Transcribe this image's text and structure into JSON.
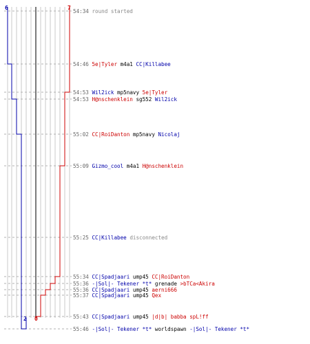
{
  "scores": {
    "blue_start": "6",
    "red_start": "7",
    "blue_end": "2",
    "red_end": "0"
  },
  "colors": {
    "blue": "#0000aa",
    "red": "#cc0000",
    "grid": "#c8c8c8",
    "dash": "#b0b0b0",
    "timestamp": "#666666"
  },
  "events": [
    {
      "time": "54:34",
      "parts": [
        {
          "t": "round started",
          "c": "gry"
        }
      ]
    },
    {
      "time": "54:46",
      "parts": [
        {
          "t": "5e|Tyler",
          "c": "red"
        },
        {
          "t": "m4a1",
          "c": "blk"
        },
        {
          "t": "CC|Killabee",
          "c": "blue"
        }
      ]
    },
    {
      "time": "54:53",
      "parts": [
        {
          "t": "Wil2ick",
          "c": "blue"
        },
        {
          "t": "mp5navy",
          "c": "blk"
        },
        {
          "t": "5e|Tyler",
          "c": "red"
        }
      ]
    },
    {
      "time": "54:53",
      "parts": [
        {
          "t": "H@nschenklein",
          "c": "red"
        },
        {
          "t": "sg552",
          "c": "blk"
        },
        {
          "t": "Wil2ick",
          "c": "blue"
        }
      ]
    },
    {
      "time": "55:02",
      "parts": [
        {
          "t": "CC|RoiDanton",
          "c": "red"
        },
        {
          "t": "mp5navy",
          "c": "blk"
        },
        {
          "t": "Nicolaj",
          "c": "blue"
        }
      ]
    },
    {
      "time": "55:09",
      "parts": [
        {
          "t": "Gizmo_cool",
          "c": "blue"
        },
        {
          "t": "m4a1",
          "c": "blk"
        },
        {
          "t": "H@nschenklein",
          "c": "red"
        }
      ]
    },
    {
      "time": "55:25",
      "parts": [
        {
          "t": "CC|Killabee",
          "c": "blue"
        },
        {
          "t": "disconnected",
          "c": "gry"
        }
      ]
    },
    {
      "time": "55:34",
      "parts": [
        {
          "t": "CC|Spadjaari",
          "c": "blue"
        },
        {
          "t": "ump45",
          "c": "blk"
        },
        {
          "t": "CC|RoiDanton",
          "c": "red"
        }
      ]
    },
    {
      "time": "55:36",
      "parts": [
        {
          "t": "-|Sol|- Tekener *t*",
          "c": "blue"
        },
        {
          "t": "grenade",
          "c": "blk"
        },
        {
          "t": ">bTCa<Akira",
          "c": "red"
        }
      ]
    },
    {
      "time": "55:36",
      "parts": [
        {
          "t": "CC|Spadjaari",
          "c": "blue"
        },
        {
          "t": "ump45",
          "c": "blk"
        },
        {
          "t": "aerni666",
          "c": "red"
        }
      ]
    },
    {
      "time": "55:37",
      "parts": [
        {
          "t": "CC|Spadjaari",
          "c": "blue"
        },
        {
          "t": "ump45",
          "c": "blk"
        },
        {
          "t": "Qex",
          "c": "red"
        }
      ]
    },
    {
      "time": "55:43",
      "parts": [
        {
          "t": "CC|Spadjaari",
          "c": "blue"
        },
        {
          "t": "ump45",
          "c": "blk"
        },
        {
          "t": "|d|b| babba spL!ff",
          "c": "red"
        }
      ]
    },
    {
      "time": "55:46",
      "parts": [
        {
          "t": "-|Sol|- Tekener *t*",
          "c": "blue"
        },
        {
          "t": "worldspawn",
          "c": "blk"
        },
        {
          "t": "-|Sol|- Tekener *t*",
          "c": "blue"
        }
      ]
    }
  ]
}
